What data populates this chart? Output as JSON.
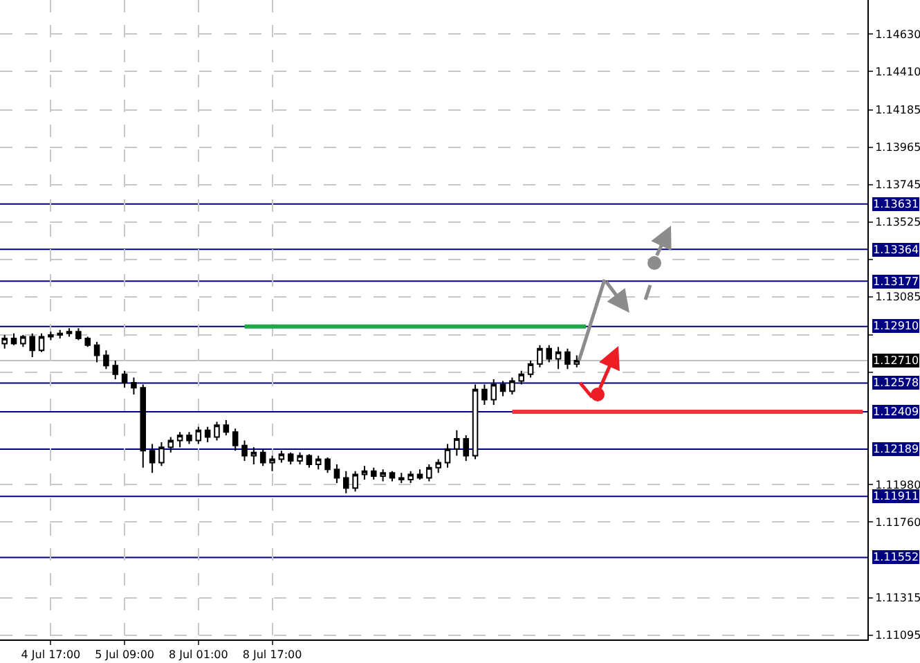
{
  "chart_data": {
    "type": "candlestick",
    "categories": [
      null,
      null,
      null,
      null,
      null,
      "4 Jul 17:00",
      null,
      null,
      null,
      null,
      null,
      null,
      null,
      "5 Jul 09:00",
      null,
      null,
      null,
      null,
      null,
      null,
      null,
      "8 Jul 01:00",
      null,
      null,
      null,
      null,
      null,
      null,
      null,
      "8 Jul 17:00",
      null,
      null,
      null,
      null,
      null,
      null,
      null,
      null,
      null,
      null,
      null,
      null,
      null,
      null,
      null,
      null,
      null,
      null,
      null,
      null,
      null,
      null,
      null,
      null,
      null,
      null,
      null,
      null,
      null,
      null,
      null,
      null,
      null,
      null,
      null,
      null,
      null,
      null,
      null,
      null,
      null,
      null,
      null,
      null,
      null,
      null,
      null,
      null,
      null,
      null,
      null,
      null,
      null,
      null,
      null,
      null,
      null,
      null,
      null,
      null,
      null,
      null,
      null,
      null
    ],
    "ohlc": [
      [
        1.1281,
        1.1286,
        1.1278,
        1.1284
      ],
      [
        1.1284,
        1.1287,
        1.128,
        1.1281
      ],
      [
        1.1281,
        1.1286,
        1.1279,
        1.1285
      ],
      [
        1.1285,
        1.1287,
        1.1273,
        1.1277
      ],
      [
        1.1277,
        1.1287,
        1.1276,
        1.1285
      ],
      [
        1.1285,
        1.1288,
        1.1283,
        1.1286
      ],
      [
        1.1286,
        1.1289,
        1.1284,
        1.1287
      ],
      [
        1.1287,
        1.129,
        1.1285,
        1.1288
      ],
      [
        1.1288,
        1.129,
        1.1283,
        1.1284
      ],
      [
        1.1284,
        1.1285,
        1.1279,
        1.128
      ],
      [
        1.128,
        1.1282,
        1.127,
        1.1274
      ],
      [
        1.1274,
        1.1277,
        1.1266,
        1.1268
      ],
      [
        1.1268,
        1.1271,
        1.126,
        1.1263
      ],
      [
        1.1263,
        1.1265,
        1.1255,
        1.1258
      ],
      [
        1.1258,
        1.1261,
        1.1251,
        1.1255
      ],
      [
        1.1255,
        1.1257,
        1.1208,
        1.1218
      ],
      [
        1.1218,
        1.1222,
        1.1205,
        1.1211
      ],
      [
        1.1211,
        1.1223,
        1.1209,
        1.122
      ],
      [
        1.122,
        1.1226,
        1.1217,
        1.1224
      ],
      [
        1.1224,
        1.1229,
        1.122,
        1.1227
      ],
      [
        1.1227,
        1.1229,
        1.1222,
        1.1224
      ],
      [
        1.1224,
        1.1232,
        1.1222,
        1.123
      ],
      [
        1.123,
        1.1232,
        1.1223,
        1.1226
      ],
      [
        1.1226,
        1.1235,
        1.1224,
        1.1233
      ],
      [
        1.1233,
        1.1236,
        1.1227,
        1.1229
      ],
      [
        1.1229,
        1.1231,
        1.1218,
        1.1221
      ],
      [
        1.1221,
        1.1224,
        1.1212,
        1.1215
      ],
      [
        1.1215,
        1.122,
        1.121,
        1.1217
      ],
      [
        1.1217,
        1.1219,
        1.1209,
        1.1211
      ],
      [
        1.1211,
        1.1215,
        1.1206,
        1.1213
      ],
      [
        1.1213,
        1.1218,
        1.1211,
        1.1216
      ],
      [
        1.1216,
        1.1217,
        1.121,
        1.1212
      ],
      [
        1.1212,
        1.1217,
        1.121,
        1.1215
      ],
      [
        1.1215,
        1.1216,
        1.1208,
        1.121
      ],
      [
        1.121,
        1.1215,
        1.1207,
        1.1213
      ],
      [
        1.1213,
        1.1214,
        1.1205,
        1.1207
      ],
      [
        1.1207,
        1.121,
        1.1199,
        1.1202
      ],
      [
        1.1202,
        1.1206,
        1.1193,
        1.1196
      ],
      [
        1.1196,
        1.1206,
        1.1194,
        1.1204
      ],
      [
        1.1204,
        1.1209,
        1.1201,
        1.1206
      ],
      [
        1.1206,
        1.1208,
        1.1201,
        1.1203
      ],
      [
        1.1203,
        1.1207,
        1.12,
        1.1205
      ],
      [
        1.1205,
        1.1206,
        1.12,
        1.1202
      ],
      [
        1.1202,
        1.1205,
        1.1199,
        1.1201
      ],
      [
        1.1201,
        1.1206,
        1.1199,
        1.1204
      ],
      [
        1.1204,
        1.1207,
        1.1201,
        1.1202
      ],
      [
        1.1202,
        1.121,
        1.12,
        1.1208
      ],
      [
        1.1208,
        1.1213,
        1.1205,
        1.1211
      ],
      [
        1.1211,
        1.1222,
        1.1208,
        1.1219
      ],
      [
        1.1219,
        1.123,
        1.1215,
        1.1225
      ],
      [
        1.1225,
        1.1227,
        1.1212,
        1.1215
      ],
      [
        1.1215,
        1.1257,
        1.1213,
        1.1254
      ],
      [
        1.1254,
        1.1257,
        1.1245,
        1.1248
      ],
      [
        1.1248,
        1.126,
        1.1245,
        1.1257
      ],
      [
        1.1257,
        1.1259,
        1.125,
        1.1253
      ],
      [
        1.1253,
        1.1261,
        1.1251,
        1.1259
      ],
      [
        1.1259,
        1.1265,
        1.1257,
        1.1263
      ],
      [
        1.1263,
        1.1271,
        1.1261,
        1.1269
      ],
      [
        1.1269,
        1.128,
        1.1267,
        1.1278
      ],
      [
        1.1278,
        1.128,
        1.127,
        1.1272
      ],
      [
        1.1272,
        1.1279,
        1.1266,
        1.1276
      ],
      [
        1.1276,
        1.1278,
        1.1266,
        1.1269
      ],
      [
        1.1269,
        1.1274,
        1.1267,
        1.1271
      ],
      null,
      null,
      null,
      null,
      null,
      null,
      null,
      null,
      null,
      null,
      null,
      null,
      null,
      null,
      null,
      null,
      null,
      null,
      null,
      null,
      null,
      null,
      null,
      null,
      null,
      null,
      null,
      null,
      null,
      null,
      null
    ],
    "series": [
      {
        "type": "line",
        "color": "#1ea84a",
        "values": [
          null,
          null,
          null,
          null,
          null,
          null,
          null,
          null,
          null,
          null,
          null,
          null,
          null,
          null,
          null,
          null,
          null,
          null,
          null,
          null,
          null,
          null,
          null,
          null,
          null,
          null,
          1.1291,
          1.1291,
          1.1291,
          1.1291,
          1.1291,
          1.1291,
          1.1291,
          1.1291,
          1.1291,
          1.1291,
          1.1291,
          1.1291,
          1.1291,
          1.1291,
          1.1291,
          1.1291,
          1.1291,
          1.1291,
          1.1291,
          1.1291,
          1.1291,
          1.1291,
          1.1291,
          1.1291,
          1.1291,
          1.1291,
          1.1291,
          1.1291,
          1.1291,
          1.1291,
          1.1291,
          1.1291,
          1.1291,
          1.1291,
          1.1291,
          1.1291,
          1.1291,
          1.1291,
          null,
          null,
          null,
          null,
          null,
          null,
          null,
          null,
          null,
          null,
          null,
          null,
          null,
          null,
          null,
          null,
          null,
          null,
          null,
          null,
          null,
          null,
          null,
          null,
          null,
          null,
          null,
          null,
          null,
          null
        ]
      },
      {
        "type": "line",
        "color": "#e8383d",
        "values": [
          null,
          null,
          null,
          null,
          null,
          null,
          null,
          null,
          null,
          null,
          null,
          null,
          null,
          null,
          null,
          null,
          null,
          null,
          null,
          null,
          null,
          null,
          null,
          null,
          null,
          null,
          null,
          null,
          null,
          null,
          null,
          null,
          null,
          null,
          null,
          null,
          null,
          null,
          null,
          null,
          null,
          null,
          null,
          null,
          null,
          null,
          null,
          null,
          null,
          null,
          null,
          null,
          null,
          null,
          null,
          1.12409,
          1.12409,
          1.12409,
          1.12409,
          1.12409,
          1.12409,
          1.12409,
          1.12409,
          1.12409,
          1.12409,
          1.12409,
          1.12409,
          1.12409,
          1.12409,
          1.12409,
          1.12409,
          1.12409,
          1.12409,
          1.12409,
          1.12409,
          1.12409,
          1.12409,
          1.12409,
          1.12409,
          1.12409,
          1.12409,
          1.12409,
          1.12409,
          1.12409,
          1.12409,
          1.12409,
          1.12409,
          1.12409,
          1.12409,
          1.12409,
          1.12409,
          1.12409,
          1.12409,
          1.12409
        ]
      }
    ],
    "ref_lines": [
      {
        "axis": "y",
        "value": 1.13631,
        "label": "1.13631",
        "color": "#000080"
      },
      {
        "axis": "y",
        "value": 1.13364,
        "label": "1.13364",
        "color": "#000080"
      },
      {
        "axis": "y",
        "value": 1.13177,
        "label": "1.13177",
        "color": "#000080"
      },
      {
        "axis": "y",
        "value": 1.1291,
        "label": "1.12910",
        "color": "#000080"
      },
      {
        "axis": "y",
        "value": 1.1271,
        "label": "1.12710",
        "color": "#c0c0c0"
      },
      {
        "axis": "y",
        "value": 1.12578,
        "label": "1.12578",
        "color": "#000080"
      },
      {
        "axis": "y",
        "value": 1.12409,
        "label": "1.12409",
        "color": "#000080"
      },
      {
        "axis": "y",
        "value": 1.12189,
        "label": "1.12189",
        "color": "#000080"
      },
      {
        "axis": "y",
        "value": 1.11911,
        "label": "1.11911",
        "color": "#000080"
      },
      {
        "axis": "y",
        "value": 1.11552,
        "label": "1.11552",
        "color": "#000080"
      }
    ],
    "ylim": [
      1.1107,
      1.1483
    ],
    "yticks": [
      {
        "value": 1.1463,
        "label": "1.14630"
      },
      {
        "value": 1.1441,
        "label": "1.14410"
      },
      1.14185,
      1.13965,
      1.13745,
      1.13525,
      {
        "value": 1.13305,
        "label": null
      },
      1.13085,
      {
        "value": 1.1286,
        "label": null
      },
      {
        "value": 1.1264,
        "label": null
      },
      {
        "value": 1.1198,
        "label": "1.11980"
      },
      {
        "value": 1.1176,
        "label": "1.11760"
      },
      1.11315,
      1.11095
    ],
    "grid": true
  }
}
